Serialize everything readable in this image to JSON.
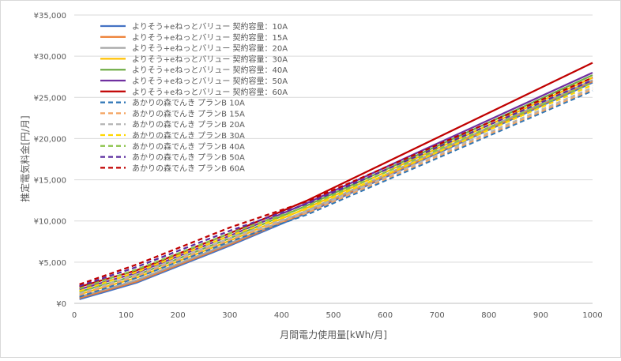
{
  "chart_data": {
    "type": "line",
    "title": "",
    "xlabel": "月間電力使用量[kWh/月]",
    "ylabel": "推定電気料金[円/月]",
    "xlim": [
      0,
      1000
    ],
    "ylim": [
      0,
      35000
    ],
    "x_ticks": [
      "0",
      "100",
      "200",
      "300",
      "400",
      "500",
      "600",
      "700",
      "800",
      "900",
      "1000"
    ],
    "y_ticks": [
      "¥0",
      "¥5,000",
      "¥10,000",
      "¥15,000",
      "¥20,000",
      "¥25,000",
      "¥30,000",
      "¥35,000"
    ],
    "grid": "horizontal",
    "legend_position": "top-left",
    "x": [
      10,
      120,
      300,
      450,
      1000
    ],
    "series": [
      {
        "name": "よりそう+eねっとバリュー 契約容量：10A",
        "color": "#4472C4",
        "dash": false,
        "values": [
          500,
          2500,
          7000,
          11000,
          26800
        ]
      },
      {
        "name": "よりそう+eねっとバリュー 契約容量：15A",
        "color": "#ED7D31",
        "dash": false,
        "values": [
          650,
          2650,
          7150,
          11150,
          26950
        ]
      },
      {
        "name": "よりそう+eねっとバリュー 契約容量：20A",
        "color": "#A5A5A5",
        "dash": false,
        "values": [
          800,
          2800,
          7300,
          11300,
          27100
        ]
      },
      {
        "name": "よりそう+eねっとバリュー 契約容量：30A",
        "color": "#FFC000",
        "dash": false,
        "values": [
          1100,
          3100,
          7600,
          11600,
          27400
        ]
      },
      {
        "name": "よりそう+eねっとバリュー 契約容量：40A",
        "color": "#70AD47",
        "dash": false,
        "values": [
          1400,
          3400,
          7900,
          11900,
          27700
        ]
      },
      {
        "name": "よりそう+eねっとバリュー 契約容量：50A",
        "color": "#7030A0",
        "dash": false,
        "values": [
          1700,
          3700,
          8200,
          12200,
          28000
        ]
      },
      {
        "name": "よりそう+eねっとバリュー 契約容量：60A",
        "color": "#C00000",
        "dash": false,
        "values": [
          2000,
          4000,
          8500,
          12500,
          29200
        ]
      },
      {
        "name": "あかりの森でんき プランB 10A",
        "color": "#2E75B6",
        "dash": true,
        "values": [
          800,
          3100,
          7500,
          10800,
          25800
        ]
      },
      {
        "name": "あかりの森でんき プランB 15A",
        "color": "#F4A460",
        "dash": true,
        "values": [
          1000,
          3300,
          7700,
          11000,
          26000
        ]
      },
      {
        "name": "あかりの森でんき プランB 20A",
        "color": "#B4B4B4",
        "dash": true,
        "values": [
          1200,
          3500,
          7900,
          11200,
          26200
        ]
      },
      {
        "name": "あかりの森でんき プランB 30A",
        "color": "#FFD700",
        "dash": true,
        "values": [
          1500,
          3800,
          8200,
          11500,
          26500
        ]
      },
      {
        "name": "あかりの森でんき プランB 40A",
        "color": "#8BC34A",
        "dash": true,
        "values": [
          1800,
          4100,
          8500,
          11800,
          26800
        ]
      },
      {
        "name": "あかりの森でんき プランB 50A",
        "color": "#5B2C9F",
        "dash": true,
        "values": [
          2100,
          4400,
          8800,
          12100,
          27100
        ]
      },
      {
        "name": "あかりの森でんき プランB 60A",
        "color": "#C00000",
        "dash": true,
        "values": [
          2300,
          4700,
          9200,
          12400,
          27400
        ]
      }
    ]
  }
}
